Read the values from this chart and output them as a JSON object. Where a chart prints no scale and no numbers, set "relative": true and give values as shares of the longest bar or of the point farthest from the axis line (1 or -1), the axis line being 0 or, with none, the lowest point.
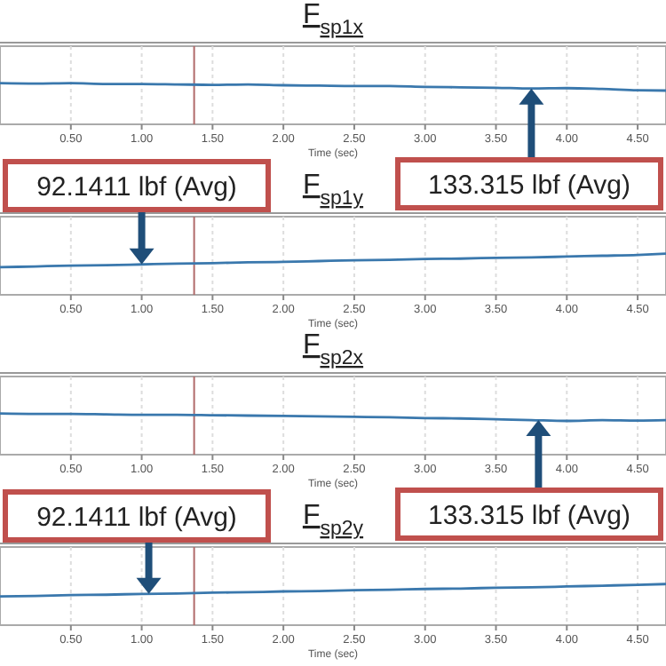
{
  "chart_data": [
    {
      "type": "line",
      "title": "F$_{sp1x}$",
      "xlabel": "Time (sec)",
      "relative": true,
      "grid": "x",
      "xlim": [
        0,
        4.7
      ],
      "xticks": [
        {
          "value": 0.5,
          "label": "0.50"
        },
        {
          "value": 1,
          "label": "1.00"
        },
        {
          "value": 1.5,
          "label": "1.50"
        },
        {
          "value": 2,
          "label": "2.00"
        },
        {
          "value": 2.5,
          "label": "2.50"
        },
        {
          "value": 3,
          "label": "3.00"
        },
        {
          "value": 3.5,
          "label": "3.50"
        },
        {
          "value": 4,
          "label": "4.00"
        },
        {
          "value": 4.5,
          "label": "4.50"
        }
      ],
      "x": [
        0,
        0.25,
        0.5,
        0.75,
        1,
        1.25,
        1.5,
        1.75,
        2,
        2.25,
        2.5,
        2.75,
        3,
        3.25,
        3.5,
        3.75,
        4,
        4.25,
        4.5,
        4.7
      ],
      "series": [
        {
          "color": "#3a78ad",
          "values": [
            1,
            0.99,
            1,
            0.98,
            0.98,
            0.97,
            0.96,
            0.97,
            0.95,
            0.94,
            0.93,
            0.93,
            0.91,
            0.9,
            0.89,
            0.87,
            0.88,
            0.86,
            0.83,
            0.82
          ]
        }
      ],
      "ref_lines": [
        {
          "axis": "x",
          "value": 1.37,
          "color": "#b06a6a"
        }
      ],
      "annotations": [
        {
          "text": "133.315 lbf (Avg)",
          "x": 3.75,
          "y": 0.87
        }
      ]
    },
    {
      "type": "line",
      "title": "F$_{sp1y}$",
      "xlabel": "Time (sec)",
      "relative": true,
      "grid": "x",
      "xlim": [
        0,
        4.7
      ],
      "xticks": [
        {
          "value": 0.5,
          "label": "0.50"
        },
        {
          "value": 1,
          "label": "1.00"
        },
        {
          "value": 1.5,
          "label": "1.50"
        },
        {
          "value": 2,
          "label": "2.00"
        },
        {
          "value": 2.5,
          "label": "2.50"
        },
        {
          "value": 3,
          "label": "3.00"
        },
        {
          "value": 3.5,
          "label": "3.50"
        },
        {
          "value": 4,
          "label": "4.00"
        },
        {
          "value": 4.5,
          "label": "4.50"
        }
      ],
      "x": [
        0,
        0.25,
        0.5,
        0.75,
        1,
        1.25,
        1.5,
        1.75,
        2,
        2.25,
        2.5,
        2.75,
        3,
        3.25,
        3.5,
        3.75,
        4,
        4.25,
        4.5,
        4.7
      ],
      "series": [
        {
          "color": "#3a78ad",
          "values": [
            0.67,
            0.69,
            0.71,
            0.72,
            0.74,
            0.76,
            0.77,
            0.79,
            0.8,
            0.82,
            0.84,
            0.85,
            0.87,
            0.88,
            0.9,
            0.91,
            0.93,
            0.95,
            0.97,
            1
          ]
        }
      ],
      "ref_lines": [
        {
          "axis": "x",
          "value": 1.37,
          "color": "#b06a6a"
        }
      ],
      "annotations": [
        {
          "text": "92.1411 lbf (Avg)",
          "x": 1,
          "y": 0.74
        }
      ]
    },
    {
      "type": "line",
      "title": "F$_{sp2x}$",
      "xlabel": "Time (sec)",
      "relative": true,
      "grid": "x",
      "xlim": [
        0,
        4.7
      ],
      "xticks": [
        {
          "value": 0.5,
          "label": "0.50"
        },
        {
          "value": 1,
          "label": "1.00"
        },
        {
          "value": 1.5,
          "label": "1.50"
        },
        {
          "value": 2,
          "label": "2.00"
        },
        {
          "value": 2.5,
          "label": "2.50"
        },
        {
          "value": 3,
          "label": "3.00"
        },
        {
          "value": 3.5,
          "label": "3.50"
        },
        {
          "value": 4,
          "label": "4.00"
        },
        {
          "value": 4.5,
          "label": "4.50"
        }
      ],
      "x": [
        0,
        0.25,
        0.5,
        0.75,
        1,
        1.25,
        1.5,
        1.75,
        2,
        2.25,
        2.5,
        2.75,
        3,
        3.25,
        3.5,
        3.75,
        4,
        4.25,
        4.5,
        4.7
      ],
      "series": [
        {
          "color": "#3a78ad",
          "values": [
            1,
            0.99,
            0.99,
            0.98,
            0.97,
            0.97,
            0.96,
            0.95,
            0.94,
            0.93,
            0.92,
            0.91,
            0.89,
            0.88,
            0.86,
            0.84,
            0.82,
            0.84,
            0.83,
            0.84
          ]
        }
      ],
      "ref_lines": [
        {
          "axis": "x",
          "value": 1.37,
          "color": "#b06a6a"
        }
      ],
      "annotations": [
        {
          "text": "133.315 lbf (Avg)",
          "x": 3.8,
          "y": 0.84
        }
      ]
    },
    {
      "type": "line",
      "title": "F$_{sp2y}$",
      "xlabel": "Time (sec)",
      "relative": true,
      "grid": "x",
      "xlim": [
        0,
        4.7
      ],
      "xticks": [
        {
          "value": 0.5,
          "label": "0.50"
        },
        {
          "value": 1,
          "label": "1.00"
        },
        {
          "value": 1.5,
          "label": "1.50"
        },
        {
          "value": 2,
          "label": "2.00"
        },
        {
          "value": 2.5,
          "label": "2.50"
        },
        {
          "value": 3,
          "label": "3.00"
        },
        {
          "value": 3.5,
          "label": "3.50"
        },
        {
          "value": 4,
          "label": "4.00"
        },
        {
          "value": 4.5,
          "label": "4.50"
        }
      ],
      "x": [
        0,
        0.25,
        0.5,
        0.75,
        1,
        1.25,
        1.5,
        1.75,
        2,
        2.25,
        2.5,
        2.75,
        3,
        3.25,
        3.5,
        3.75,
        4,
        4.25,
        4.5,
        4.7
      ],
      "series": [
        {
          "color": "#3a78ad",
          "values": [
            0.7,
            0.71,
            0.73,
            0.74,
            0.76,
            0.77,
            0.79,
            0.8,
            0.82,
            0.83,
            0.85,
            0.86,
            0.88,
            0.89,
            0.91,
            0.92,
            0.94,
            0.96,
            0.98,
            1
          ]
        }
      ],
      "ref_lines": [
        {
          "axis": "x",
          "value": 1.37,
          "color": "#b06a6a"
        }
      ],
      "annotations": [
        {
          "text": "92.1411 lbf (Avg)",
          "x": 1.05,
          "y": 0.76
        }
      ]
    }
  ]
}
